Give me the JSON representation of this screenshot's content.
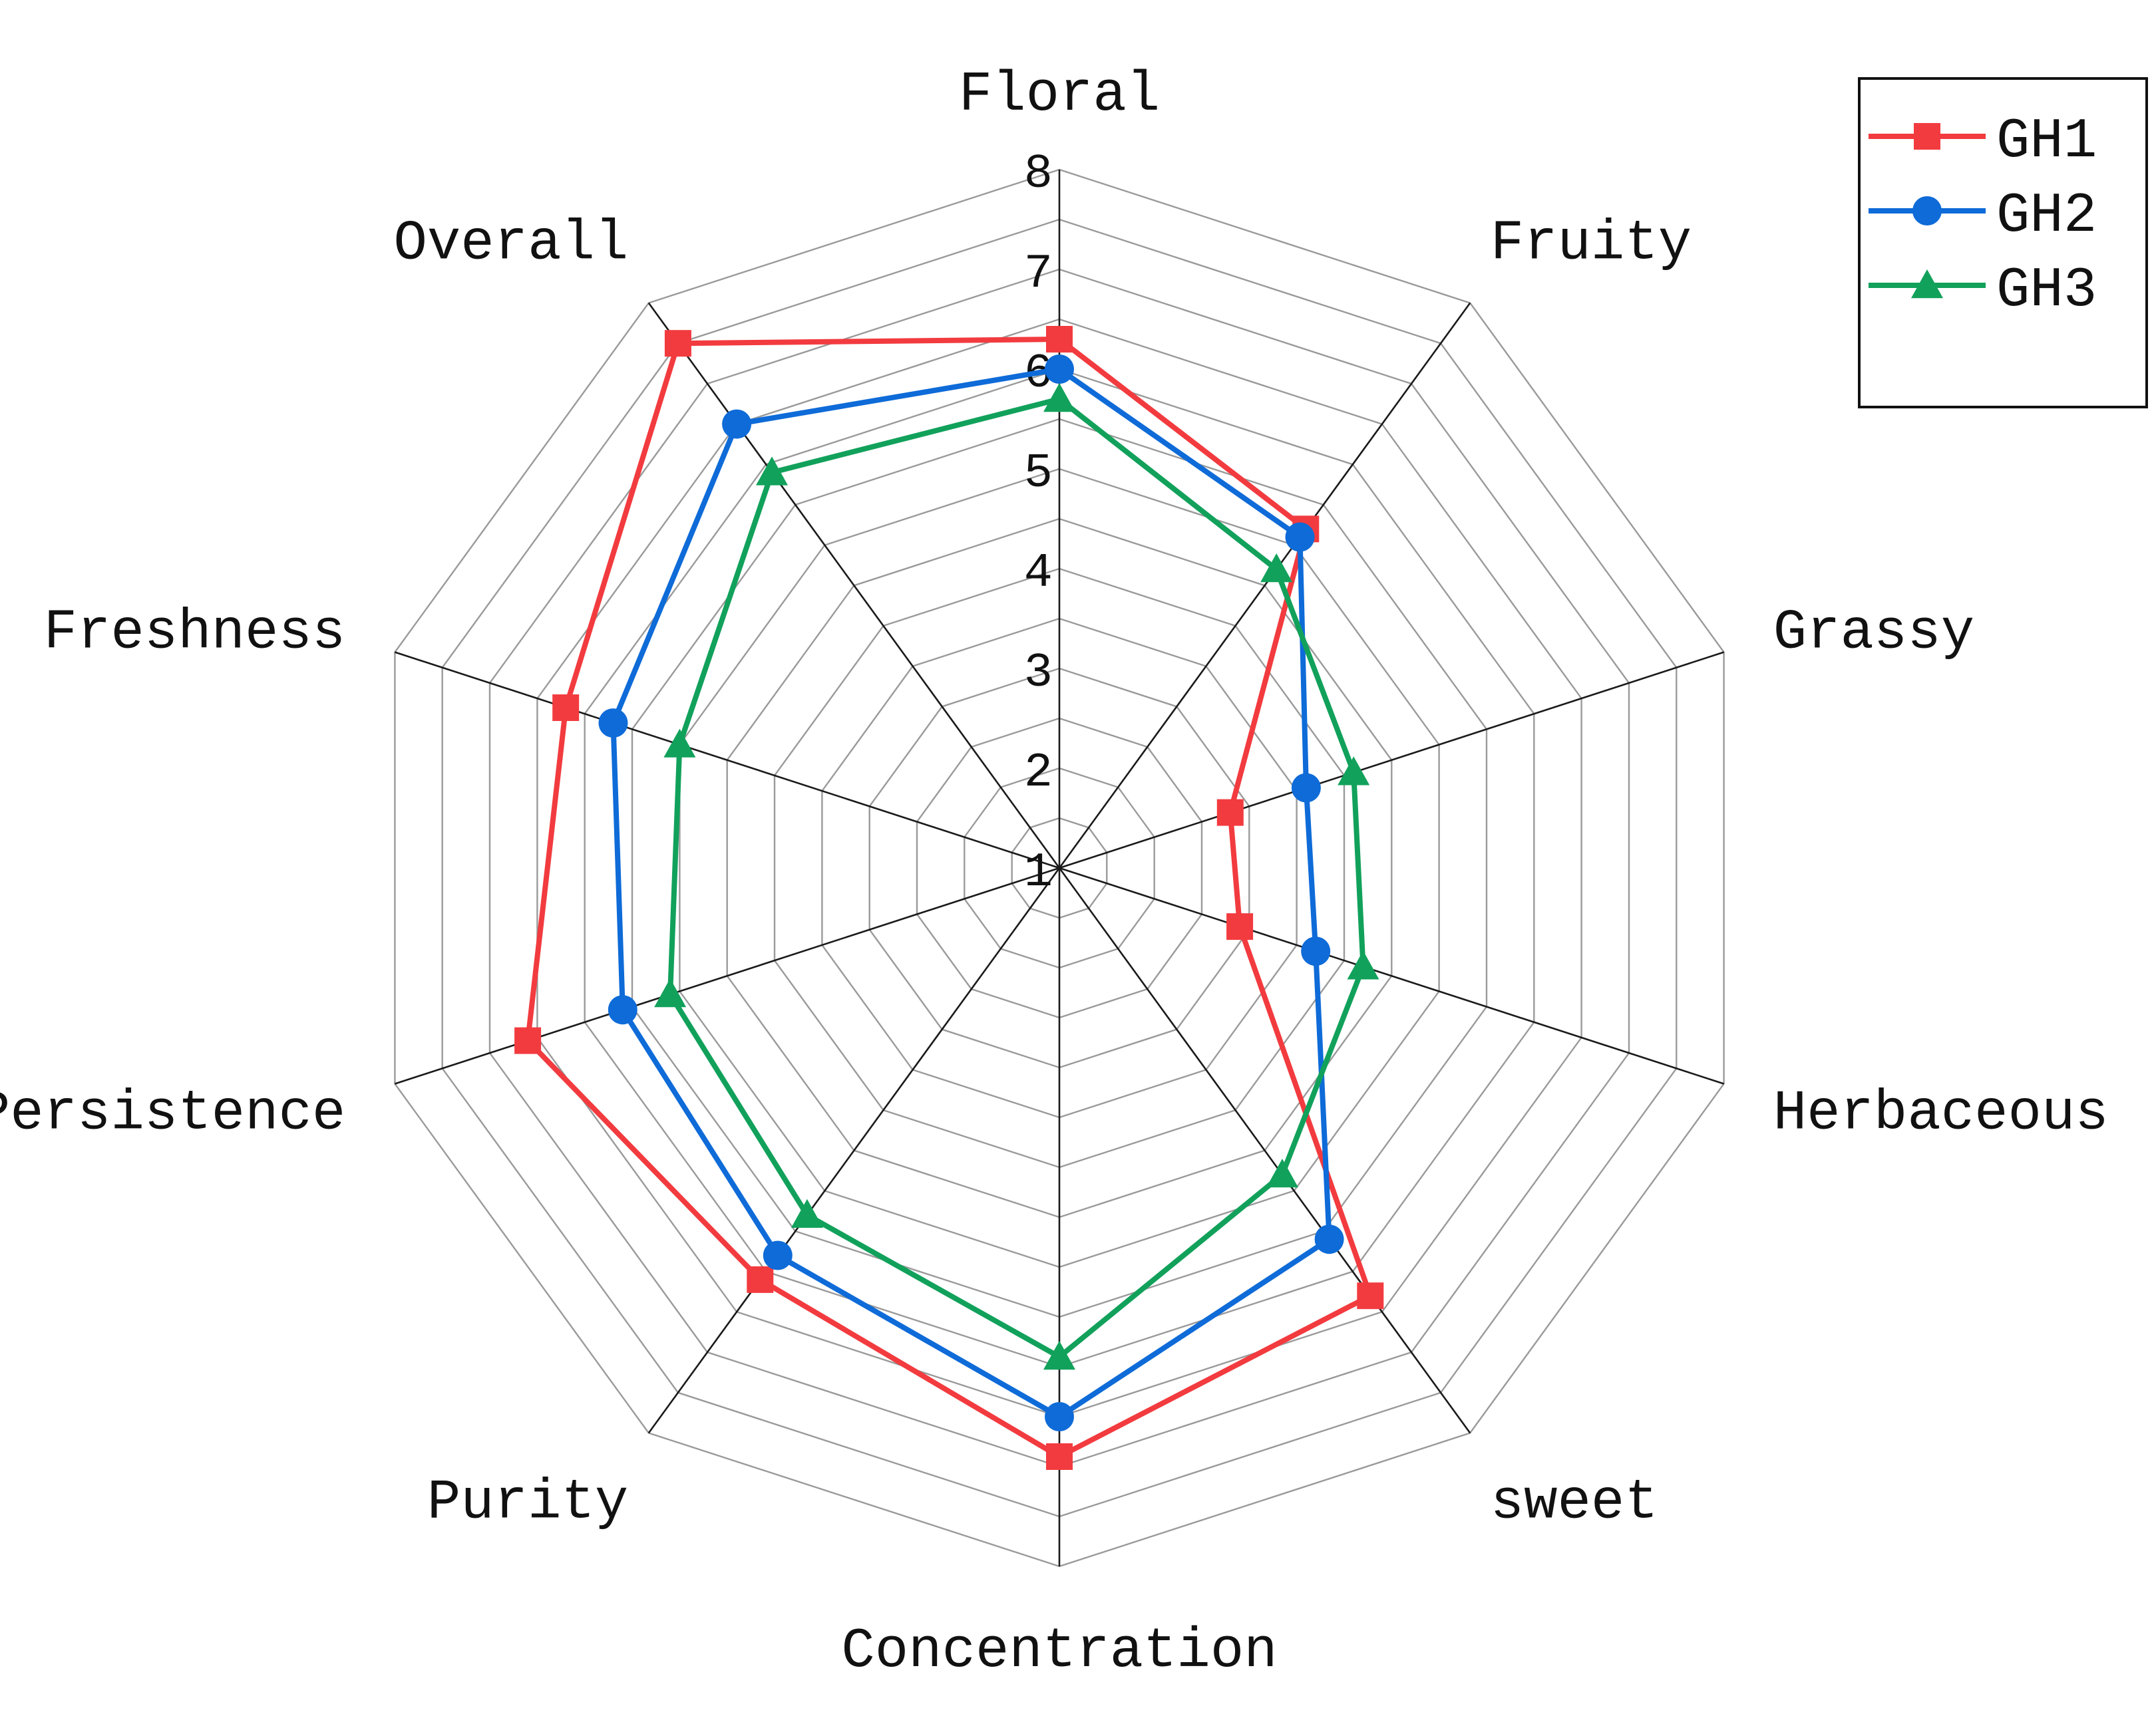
{
  "chart_data": {
    "type": "radar",
    "axes": [
      "Floral",
      "Fruity",
      "Grassy",
      "Herbaceous",
      "sweet",
      "Concentration",
      "Purity",
      "Persistence",
      "Freshness",
      "Overall"
    ],
    "r_ticks": [
      "1",
      "2",
      "3",
      "4",
      "5",
      "6",
      "7",
      "8"
    ],
    "rlim": [
      1,
      8
    ],
    "grid": true,
    "legend_position": "top-right",
    "series": [
      {
        "name": "GH1",
        "color": "#f23b3f",
        "marker": "square",
        "values": [
          6.3,
          5.2,
          2.8,
          2.9,
          6.3,
          6.9,
          6.1,
          6.6,
          6.2,
          7.5
        ]
      },
      {
        "name": "GH2",
        "color": "#0e6bd8",
        "marker": "circle",
        "values": [
          6.0,
          5.1,
          3.6,
          3.7,
          5.6,
          6.5,
          5.8,
          5.6,
          5.7,
          6.5
        ]
      },
      {
        "name": "GH3",
        "color": "#11a15b",
        "marker": "triangle",
        "values": [
          5.7,
          4.7,
          4.1,
          4.2,
          4.8,
          5.9,
          5.3,
          5.1,
          5.0,
          5.9
        ]
      }
    ]
  }
}
